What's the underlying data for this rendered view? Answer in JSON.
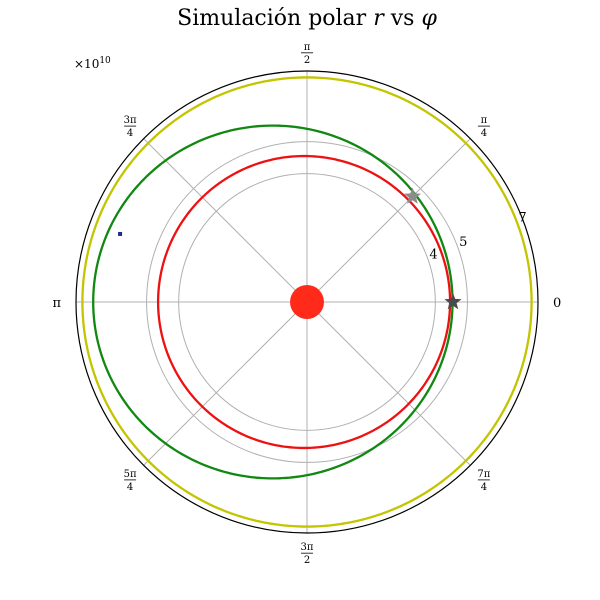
{
  "chart_data": {
    "type": "polar",
    "title": "Simulación polar r vs φ",
    "title_parts": {
      "prefix": "Simulación polar ",
      "r": "r",
      "mid": " vs ",
      "phi": "φ"
    },
    "radial_scale_label": "×10¹⁰",
    "radial_scale_mantissa": "×10",
    "radial_scale_exponent": "10",
    "rlim": [
      0,
      7.2
    ],
    "radial_unit_multiplier": 10000000000.0,
    "radial_gridlines": [
      4,
      5,
      7
    ],
    "radial_tick_labels": [
      "4",
      "5",
      "7"
    ],
    "radial_label_angle_deg": 22.5,
    "angular_gridlines_deg": [
      0,
      45,
      90,
      135,
      180,
      225,
      270,
      315
    ],
    "angular_tick_labels": [
      {
        "angle_deg": 0,
        "kind": "text",
        "text": "0"
      },
      {
        "angle_deg": 45,
        "kind": "frac",
        "num": "π",
        "den": "4"
      },
      {
        "angle_deg": 90,
        "kind": "frac",
        "num": "π",
        "den": "2"
      },
      {
        "angle_deg": 135,
        "kind": "frac",
        "num": "3π",
        "den": "4"
      },
      {
        "angle_deg": 180,
        "kind": "text",
        "text": "π"
      },
      {
        "angle_deg": 225,
        "kind": "frac",
        "num": "5π",
        "den": "4"
      },
      {
        "angle_deg": 270,
        "kind": "frac",
        "num": "3π",
        "den": "2"
      },
      {
        "angle_deg": 315,
        "kind": "frac",
        "num": "7π",
        "den": "4"
      }
    ],
    "grid": true,
    "series": [
      {
        "kind": "ellipse",
        "color": "#c4c400",
        "a": 7.0,
        "e": 0.0,
        "periapsis_deg": 0
      },
      {
        "kind": "ellipse",
        "color": "#ee1111",
        "a": 4.55,
        "e": 0.02,
        "periapsis_deg": 0
      },
      {
        "kind": "ellipse",
        "color": "#118811",
        "a": 5.6,
        "e": 0.19,
        "periapsis_deg": 0
      }
    ],
    "markers": [
      {
        "kind": "star",
        "color": "#8c8c8c",
        "r": 4.65,
        "theta_deg": 45
      },
      {
        "kind": "star",
        "color": "#4a4a4a",
        "r": 4.55,
        "theta_deg": 0
      },
      {
        "kind": "dot",
        "color": "#1f2a8a",
        "r": 6.2,
        "theta_deg": 160
      },
      {
        "kind": "sun",
        "color": "#ff2a1a",
        "r": 0,
        "theta_deg": 0
      }
    ]
  }
}
